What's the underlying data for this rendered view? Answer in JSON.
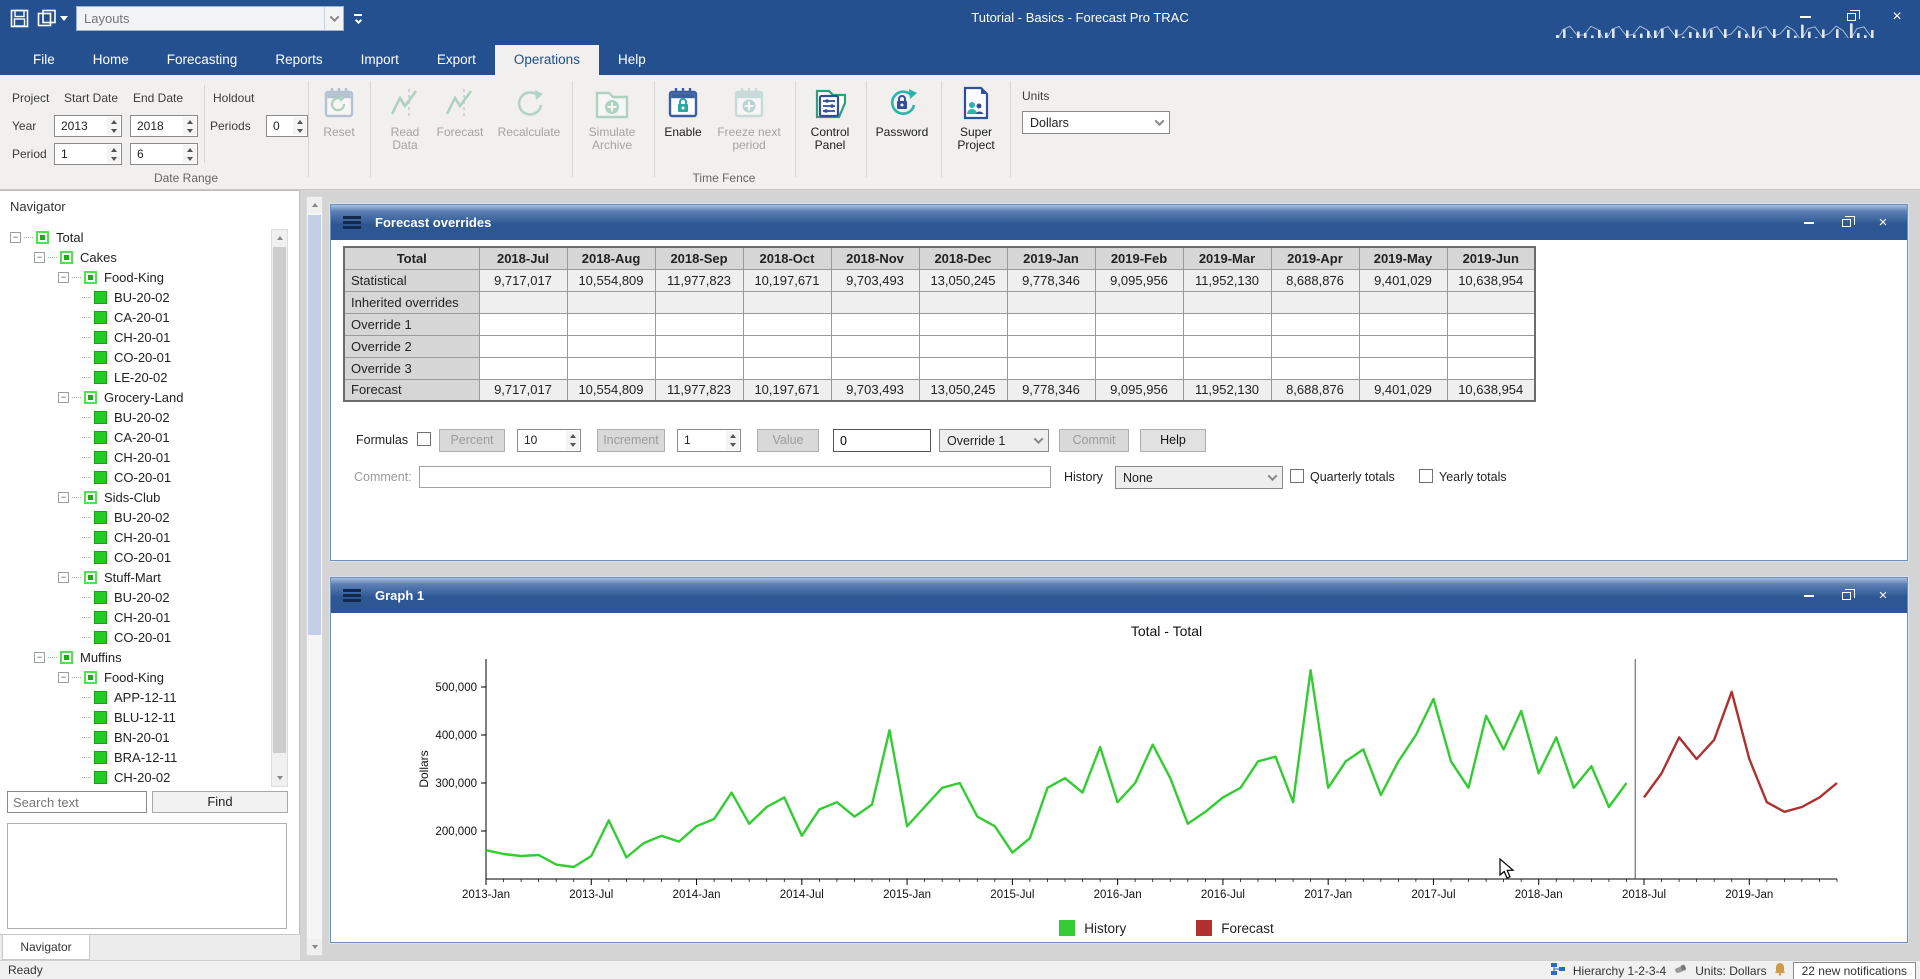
{
  "window": {
    "title": "Tutorial - Basics - Forecast Pro TRAC",
    "layouts_placeholder": "Layouts"
  },
  "ribbon": {
    "tabs": [
      "File",
      "Home",
      "Forecasting",
      "Reports",
      "Import",
      "Export",
      "Operations",
      "Help"
    ],
    "active_tab": "Operations",
    "groups": {
      "date_range": "Date Range",
      "time_fence": "Time Fence"
    },
    "date_range": {
      "project_label": "Project",
      "start_label": "Start Date",
      "end_label": "End Date",
      "year_label": "Year",
      "period_label": "Period",
      "year_start": "2013",
      "year_end": "2018",
      "period_start": "1",
      "period_end": "6"
    },
    "holdout": {
      "label": "Holdout",
      "periods_label": "Periods",
      "periods_value": "0"
    },
    "buttons": [
      {
        "id": "reset",
        "label": "Reset",
        "enabled": false,
        "icon": "calendar-reset"
      },
      {
        "id": "read_data",
        "label": "Read Data",
        "enabled": false,
        "icon": "line-chart"
      },
      {
        "id": "forecast",
        "label": "Forecast",
        "enabled": false,
        "icon": "line-chart"
      },
      {
        "id": "recalculate",
        "label": "Recalculate",
        "enabled": false,
        "icon": "refresh"
      },
      {
        "id": "simulate_archive",
        "label": "Simulate Archive",
        "enabled": false,
        "icon": "folder-plus"
      },
      {
        "id": "enable",
        "label": "Enable",
        "enabled": true,
        "icon": "calendar-lock"
      },
      {
        "id": "freeze",
        "label": "Freeze next period",
        "enabled": false,
        "icon": "calendar-plus"
      },
      {
        "id": "control_panel",
        "label": "Control Panel",
        "enabled": true,
        "icon": "folder-sliders"
      },
      {
        "id": "password",
        "label": "Password",
        "enabled": true,
        "icon": "refresh-lock"
      },
      {
        "id": "super_project",
        "label": "Super Project",
        "enabled": true,
        "icon": "doc-people"
      }
    ],
    "units": {
      "label": "Units",
      "value": "Dollars"
    }
  },
  "navigator": {
    "title": "Navigator",
    "tree": [
      {
        "label": "Total",
        "depth": 0,
        "type": "parent"
      },
      {
        "label": "Cakes",
        "depth": 1,
        "type": "parent"
      },
      {
        "label": "Food-King",
        "depth": 2,
        "type": "parent"
      },
      {
        "label": "BU-20-02",
        "depth": 3,
        "type": "leaf"
      },
      {
        "label": "CA-20-01",
        "depth": 3,
        "type": "leaf"
      },
      {
        "label": "CH-20-01",
        "depth": 3,
        "type": "leaf"
      },
      {
        "label": "CO-20-01",
        "depth": 3,
        "type": "leaf"
      },
      {
        "label": "LE-20-02",
        "depth": 3,
        "type": "leaf"
      },
      {
        "label": "Grocery-Land",
        "depth": 2,
        "type": "parent"
      },
      {
        "label": "BU-20-02",
        "depth": 3,
        "type": "leaf"
      },
      {
        "label": "CA-20-01",
        "depth": 3,
        "type": "leaf"
      },
      {
        "label": "CH-20-01",
        "depth": 3,
        "type": "leaf"
      },
      {
        "label": "CO-20-01",
        "depth": 3,
        "type": "leaf"
      },
      {
        "label": "Sids-Club",
        "depth": 2,
        "type": "parent"
      },
      {
        "label": "BU-20-02",
        "depth": 3,
        "type": "leaf"
      },
      {
        "label": "CH-20-01",
        "depth": 3,
        "type": "leaf"
      },
      {
        "label": "CO-20-01",
        "depth": 3,
        "type": "leaf"
      },
      {
        "label": "Stuff-Mart",
        "depth": 2,
        "type": "parent"
      },
      {
        "label": "BU-20-02",
        "depth": 3,
        "type": "leaf"
      },
      {
        "label": "CH-20-01",
        "depth": 3,
        "type": "leaf"
      },
      {
        "label": "CO-20-01",
        "depth": 3,
        "type": "leaf"
      },
      {
        "label": "Muffins",
        "depth": 1,
        "type": "parent"
      },
      {
        "label": "Food-King",
        "depth": 2,
        "type": "parent"
      },
      {
        "label": "APP-12-11",
        "depth": 3,
        "type": "leaf"
      },
      {
        "label": "BLU-12-11",
        "depth": 3,
        "type": "leaf"
      },
      {
        "label": "BN-20-01",
        "depth": 3,
        "type": "leaf"
      },
      {
        "label": "BRA-12-11",
        "depth": 3,
        "type": "leaf"
      },
      {
        "label": "CH-20-02",
        "depth": 3,
        "type": "leaf"
      }
    ],
    "search_placeholder": "Search text",
    "find_label": "Find",
    "bottom_tab": "Navigator"
  },
  "overrides_panel": {
    "title": "Forecast overrides",
    "table": {
      "columns": [
        "Total",
        "2018-Jul",
        "2018-Aug",
        "2018-Sep",
        "2018-Oct",
        "2018-Nov",
        "2018-Dec",
        "2019-Jan",
        "2019-Feb",
        "2019-Mar",
        "2019-Apr",
        "2019-May",
        "2019-Jun"
      ],
      "rows": [
        {
          "label": "Statistical",
          "shaded": true,
          "values": [
            "9,717,017",
            "10,554,809",
            "11,977,823",
            "10,197,671",
            "9,703,493",
            "13,050,245",
            "9,778,346",
            "9,095,956",
            "11,952,130",
            "8,688,876",
            "9,401,029",
            "10,638,954"
          ]
        },
        {
          "label": "Inherited overrides",
          "shaded": true,
          "values": []
        },
        {
          "label": "Override 1",
          "shaded": false,
          "values": []
        },
        {
          "label": "Override 2",
          "shaded": false,
          "values": []
        },
        {
          "label": "Override 3",
          "shaded": false,
          "values": []
        },
        {
          "label": "Forecast",
          "shaded": true,
          "values": [
            "9,717,017",
            "10,554,809",
            "11,977,823",
            "10,197,671",
            "9,703,493",
            "13,050,245",
            "9,778,346",
            "9,095,956",
            "11,952,130",
            "8,688,876",
            "9,401,029",
            "10,638,954"
          ]
        }
      ]
    },
    "formulas": {
      "label": "Formulas",
      "percent_label": "Percent",
      "percent_value": "10",
      "increment_label": "Increment",
      "increment_value": "1",
      "value_label": "Value",
      "value_field": "0",
      "override_selected": "Override 1",
      "commit_label": "Commit",
      "help_label": "Help"
    },
    "comment_label": "Comment:",
    "history_label": "History",
    "history_selected": "None",
    "quarterly_label": "Quarterly totals",
    "yearly_label": "Yearly totals"
  },
  "graph_panel": {
    "title": "Graph 1"
  },
  "chart_data": {
    "type": "line",
    "title": "Total - Total",
    "ylabel": "Dollars",
    "x_ticks": [
      "2013-Jan",
      "2013-Jul",
      "2014-Jan",
      "2014-Jul",
      "2015-Jan",
      "2015-Jul",
      "2016-Jan",
      "2016-Jul",
      "2017-Jan",
      "2017-Jul",
      "2018-Jan",
      "2018-Jul",
      "2019-Jan"
    ],
    "y_ticks": [
      200000,
      300000,
      400000,
      500000
    ],
    "ylim": [
      100000,
      560000
    ],
    "grid": false,
    "legend_position": "bottom",
    "time_fence_index": 65.5,
    "series": [
      {
        "name": "History",
        "color": "#33cc33",
        "start": "2013-Jan",
        "start_index": 0,
        "values": [
          160000,
          152000,
          148000,
          150000,
          130000,
          125000,
          148000,
          222000,
          145000,
          175000,
          190000,
          178000,
          210000,
          225000,
          280000,
          215000,
          250000,
          270000,
          190000,
          245000,
          260000,
          230000,
          255000,
          410000,
          210000,
          250000,
          290000,
          300000,
          230000,
          210000,
          155000,
          185000,
          290000,
          310000,
          280000,
          375000,
          260000,
          300000,
          380000,
          310000,
          215000,
          240000,
          270000,
          290000,
          345000,
          355000,
          260000,
          535000,
          290000,
          345000,
          370000,
          275000,
          345000,
          400000,
          475000,
          345000,
          290000,
          440000,
          370000,
          450000,
          320000,
          395000,
          290000,
          335000,
          250000,
          300000
        ]
      },
      {
        "name": "Forecast",
        "color": "#b03030",
        "start": "2018-Jul",
        "start_index": 66,
        "values": [
          270000,
          320000,
          395000,
          350000,
          390000,
          490000,
          350000,
          260000,
          240000,
          250000,
          270000,
          300000
        ]
      }
    ]
  },
  "statusbar": {
    "ready": "Ready",
    "hierarchy": "Hierarchy 1-2-3-4",
    "units": "Units: Dollars",
    "notifications": "22 new notifications"
  },
  "icons": {
    "save-icon": "floppy disk",
    "layouts-icon": "stacked windows",
    "qat-menu-icon": "chevron-down",
    "hamburger-icon": "menu bars",
    "minimize-icon": "dash",
    "restore-icon": "overlapping squares",
    "close-icon": "x",
    "hierarchy-icon": "org chart",
    "units-icon": "eraser",
    "notifications-icon": "bell",
    "cursor-icon": "arrow pointer",
    "calendar-reset": "calendar with reset arrow",
    "line-chart": "zigzag line chart",
    "refresh": "circular arrows",
    "folder-plus": "folder with plus",
    "calendar-lock": "calendar with lock",
    "calendar-plus": "calendar with plus",
    "folder-sliders": "folder with sliders",
    "refresh-lock": "circular arrow with lock",
    "doc-people": "document with people"
  }
}
